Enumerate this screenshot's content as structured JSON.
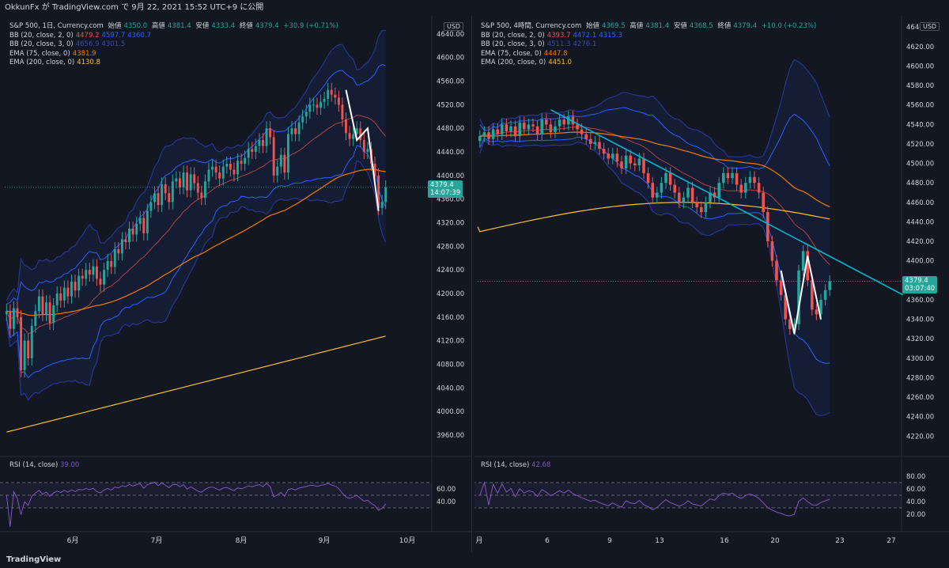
{
  "header": {
    "user": "OkkunFx",
    "ga": "が",
    "site": "TradingView.com",
    "de": "で",
    "date": "9月 22, 2021 15:52 UTC+9",
    "published": "に公開"
  },
  "footer": {
    "logo": "TradingView"
  },
  "colors": {
    "bg": "#131722",
    "up": "#26a69a",
    "down": "#ef5350",
    "bb2": "#2962ff",
    "bb3": "#283593",
    "ema75": "#f57c00",
    "ema200": "#fbc02d",
    "rsi": "#7e57c2",
    "trend": "#00bcd4",
    "zigzag": "#ffffff"
  },
  "left": {
    "title": "S&P 500, 1日, Currency.com",
    "ohlc": [
      {
        "label": "始値",
        "value": "4350.0"
      },
      {
        "label": "高値",
        "value": "4381.4"
      },
      {
        "label": "安値",
        "value": "4333.4"
      },
      {
        "label": "終値",
        "value": "4379.4"
      }
    ],
    "change": "+30.9 (+0.71%)",
    "indicators": [
      {
        "name": "BB (20, close, 2, 0)",
        "values": [
          "4479.2",
          "4597.7",
          "4360.7"
        ]
      },
      {
        "name": "BB (20, close, 3, 0)",
        "values": [
          "4656.9",
          "4301.5"
        ]
      },
      {
        "name": "EMA (75, close, 0)",
        "values": [
          "4381.9"
        ]
      },
      {
        "name": "EMA (200, close, 0)",
        "values": [
          "4130.8"
        ]
      }
    ],
    "currency": "USD",
    "price_tag": "4379.4",
    "countdown": "14:07:39",
    "rsi_label": "RSI (14, close)",
    "rsi_value": "39.00",
    "x_labels": [
      "6月",
      "7月",
      "8月",
      "9月",
      "10月"
    ]
  },
  "right": {
    "title": "S&P 500, 4時間, Currency.com",
    "ohlc": [
      {
        "label": "始値",
        "value": "4369.5"
      },
      {
        "label": "高値",
        "value": "4381.4"
      },
      {
        "label": "安値",
        "value": "4368.5"
      },
      {
        "label": "終値",
        "value": "4379.4"
      }
    ],
    "change": "+10.0 (+0.23%)",
    "indicators": [
      {
        "name": "BB (20, close, 2, 0)",
        "values": [
          "4393.7",
          "4472.1",
          "4315.3"
        ]
      },
      {
        "name": "BB (20, close, 3, 0)",
        "values": [
          "4511.3",
          "4276.1"
        ]
      },
      {
        "name": "EMA (75, close, 0)",
        "values": [
          "4447.8"
        ]
      },
      {
        "name": "EMA (200, close, 0)",
        "values": [
          "4451.0"
        ]
      }
    ],
    "currency": "USD",
    "price_tag": "4379.4",
    "countdown": "03:07:40",
    "rsi_label": "RSI (14, close)",
    "rsi_value": "42.68",
    "x_labels": [
      "月",
      "6",
      "9",
      "13",
      "16",
      "20",
      "23",
      "27"
    ]
  },
  "chart_data": [
    {
      "type": "candlestick",
      "title": "S&P 500, 1日, Currency.com",
      "y_ticks": [
        3960,
        4000,
        4040,
        4080,
        4120,
        4160,
        4200,
        4240,
        4280,
        4320,
        4360,
        4400,
        4440,
        4480,
        4520,
        4560,
        4600,
        4640
      ],
      "ylim": [
        3925,
        4660
      ],
      "rsi_ticks": [
        40,
        60
      ],
      "closes": [
        4170,
        4140,
        4175,
        4160,
        4070,
        4120,
        4090,
        4145,
        4170,
        4195,
        4165,
        4185,
        4150,
        4180,
        4200,
        4188,
        4210,
        4195,
        4220,
        4205,
        4230,
        4225,
        4240,
        4232,
        4246,
        4225,
        4215,
        4240,
        4255,
        4245,
        4275,
        4268,
        4292,
        4287,
        4310,
        4300,
        4318,
        4328,
        4302,
        4340,
        4355,
        4370,
        4350,
        4385,
        4370,
        4355,
        4390,
        4395,
        4380,
        4405,
        4375,
        4402,
        4387,
        4371,
        4362,
        4390,
        4410,
        4415,
        4405,
        4395,
        4415,
        4420,
        4410,
        4402,
        4425,
        4420,
        4430,
        4445,
        4440,
        4450,
        4460,
        4450,
        4480,
        4465,
        4400,
        4415,
        4435,
        4405,
        4470,
        4480,
        4470,
        4490,
        4500,
        4508,
        4520,
        4520,
        4515,
        4525,
        4530,
        4545,
        4537,
        4532,
        4520,
        4495,
        4472,
        4462,
        4470,
        4480,
        4460,
        4440,
        4445,
        4420,
        4400,
        4345,
        4355,
        4380
      ],
      "ema200": [
        [
          4120,
          4050
        ],
        [
          4128,
          4060
        ],
        [
          4136,
          4072
        ]
      ],
      "zigzag": [
        4545,
        4460,
        4480,
        4340
      ]
    },
    {
      "type": "candlestick",
      "title": "S&P 500, 4時間, Currency.com",
      "y_ticks": [
        4220,
        4240,
        4260,
        4280,
        4300,
        4320,
        4340,
        4360,
        4380,
        4400,
        4420,
        4440,
        4460,
        4480,
        4500,
        4520,
        4540,
        4560,
        4580,
        4600,
        4620,
        4640
      ],
      "ylim": [
        4200,
        4645
      ],
      "rsi_ticks": [
        20,
        40,
        60,
        80
      ],
      "closes": [
        4528,
        4532,
        4525,
        4535,
        4530,
        4540,
        4533,
        4538,
        4528,
        4542,
        4535,
        4540,
        4538,
        4530,
        4545,
        4540,
        4532,
        4538,
        4545,
        4540,
        4548,
        4540,
        4535,
        4530,
        4525,
        4520,
        4522,
        4515,
        4510,
        4505,
        4510,
        4502,
        4495,
        4508,
        4500,
        4498,
        4505,
        4490,
        4480,
        4465,
        4470,
        4480,
        4490,
        4478,
        4470,
        4460,
        4465,
        4475,
        4460,
        4455,
        4450,
        4460,
        4470,
        4465,
        4480,
        4490,
        4485,
        4490,
        4478,
        4470,
        4480,
        4486,
        4480,
        4470,
        4450,
        4420,
        4400,
        4380,
        4365,
        4340,
        4330,
        4335,
        4390,
        4410,
        4380,
        4350,
        4345,
        4360,
        4370,
        4379
      ],
      "trendline": [
        [
          4555,
          0
        ],
        [
          4365,
          1
        ]
      ],
      "zigzag": [
        4390,
        4325,
        4405,
        4340
      ]
    }
  ]
}
